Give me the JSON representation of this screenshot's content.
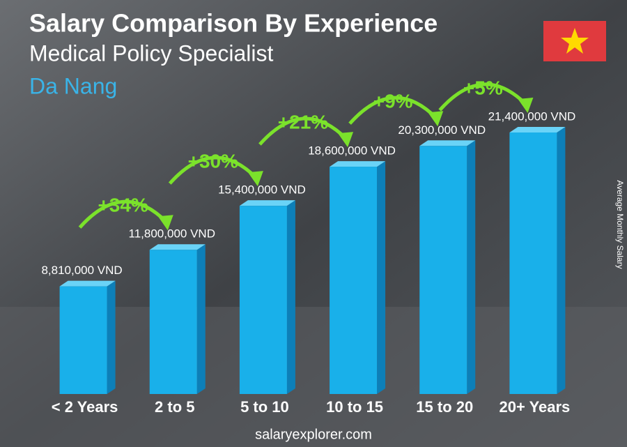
{
  "chart_data": {
    "type": "bar",
    "title": "Salary Comparison By Experience",
    "subtitle": "Medical Policy Specialist",
    "location": "Da Nang",
    "y_axis_label": "Average Monthly Salary",
    "footer": "salaryexplorer.com",
    "categories": [
      "< 2 Years",
      "2 to 5",
      "5 to 10",
      "10 to 15",
      "15 to 20",
      "20+ Years"
    ],
    "values": [
      8810000,
      11800000,
      15400000,
      18600000,
      20300000,
      21400000
    ],
    "value_labels": [
      "8,810,000 VND",
      "11,800,000 VND",
      "15,400,000 VND",
      "18,600,000 VND",
      "20,300,000 VND",
      "21,400,000 VND"
    ],
    "changes": [
      {
        "value": 34,
        "label": "+34%"
      },
      {
        "value": 30,
        "label": "+30%"
      },
      {
        "value": 21,
        "label": "+21%"
      },
      {
        "value": 9,
        "label": "+9%"
      },
      {
        "value": 5,
        "label": "+5%"
      }
    ],
    "color": "#19b0ea",
    "change_color": "#7be22b"
  }
}
